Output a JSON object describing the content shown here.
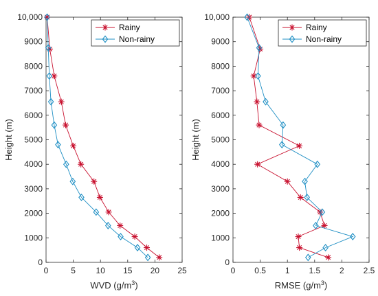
{
  "colors": {
    "rainy": "#c8102e",
    "non_rainy": "#1f8fc4",
    "axis": "#262626"
  },
  "chart_data": [
    {
      "type": "line",
      "xlabel": "WVD (g/m",
      "xlabel_sup": "3",
      "xlabel_close": ")",
      "ylabel": "Height (m)",
      "xlim": [
        0,
        25
      ],
      "ylim": [
        0,
        10000
      ],
      "xticks": [
        0,
        5,
        10,
        15,
        20,
        25
      ],
      "yticks": [
        0,
        1000,
        2000,
        3000,
        4000,
        5000,
        6000,
        7000,
        8000,
        9000,
        10000
      ],
      "ytick_labels": [
        "0",
        "1000",
        "2000",
        "3000",
        "4000",
        "5000",
        "6000",
        "7000",
        "8000",
        "9000",
        "10,000"
      ],
      "legend_position": "top-right",
      "series": [
        {
          "name": "Rainy",
          "marker": "asterisk",
          "x": [
            20.8,
            18.5,
            16.3,
            13.6,
            11.5,
            9.9,
            8.8,
            6.4,
            5.0,
            3.6,
            2.8,
            1.5,
            0.7,
            0.2
          ],
          "y": [
            200,
            600,
            1050,
            1500,
            2050,
            2650,
            3300,
            4000,
            4750,
            5600,
            6550,
            7600,
            8700,
            10000
          ]
        },
        {
          "name": "Non-rainy",
          "marker": "diamond",
          "x": [
            18.7,
            16.8,
            13.7,
            11.4,
            9.2,
            6.5,
            4.9,
            3.7,
            2.2,
            1.5,
            0.9,
            0.6,
            0.4,
            0.2
          ],
          "y": [
            200,
            600,
            1050,
            1500,
            2050,
            2650,
            3300,
            4000,
            4800,
            5600,
            6550,
            7600,
            8750,
            10000
          ]
        }
      ]
    },
    {
      "type": "line",
      "xlabel": "RMSE (g/m",
      "xlabel_sup": "3",
      "xlabel_close": ")",
      "ylabel": "Height (m)",
      "xlim": [
        0,
        2.5
      ],
      "ylim": [
        0,
        10000
      ],
      "xticks": [
        0,
        0.5,
        1,
        1.5,
        2,
        2.5
      ],
      "xtick_labels": [
        "0",
        "0.5",
        "1",
        "1.5",
        "2",
        "2.5"
      ],
      "yticks": [
        0,
        1000,
        2000,
        3000,
        4000,
        5000,
        6000,
        7000,
        8000,
        9000,
        10000
      ],
      "ytick_labels": [
        "0",
        "1000",
        "2000",
        "3000",
        "4000",
        "5000",
        "6000",
        "7000",
        "8000",
        "9000",
        "10,000"
      ],
      "legend_position": "top-right",
      "series": [
        {
          "name": "Rainy",
          "marker": "asterisk",
          "x": [
            1.75,
            1.22,
            1.2,
            1.68,
            1.6,
            1.24,
            1.0,
            0.45,
            1.22,
            0.48,
            0.44,
            0.38,
            0.5,
            0.3
          ],
          "y": [
            200,
            600,
            1050,
            1500,
            2050,
            2650,
            3300,
            4000,
            4750,
            5600,
            6550,
            7600,
            8700,
            10000
          ]
        },
        {
          "name": "Non-rainy",
          "marker": "diamond",
          "x": [
            1.38,
            1.7,
            2.2,
            1.52,
            1.64,
            1.36,
            1.32,
            1.55,
            0.9,
            0.92,
            0.6,
            0.46,
            0.48,
            0.26
          ],
          "y": [
            200,
            600,
            1050,
            1500,
            2050,
            2650,
            3300,
            4000,
            4800,
            5600,
            6550,
            7600,
            8750,
            10000
          ]
        }
      ]
    }
  ]
}
